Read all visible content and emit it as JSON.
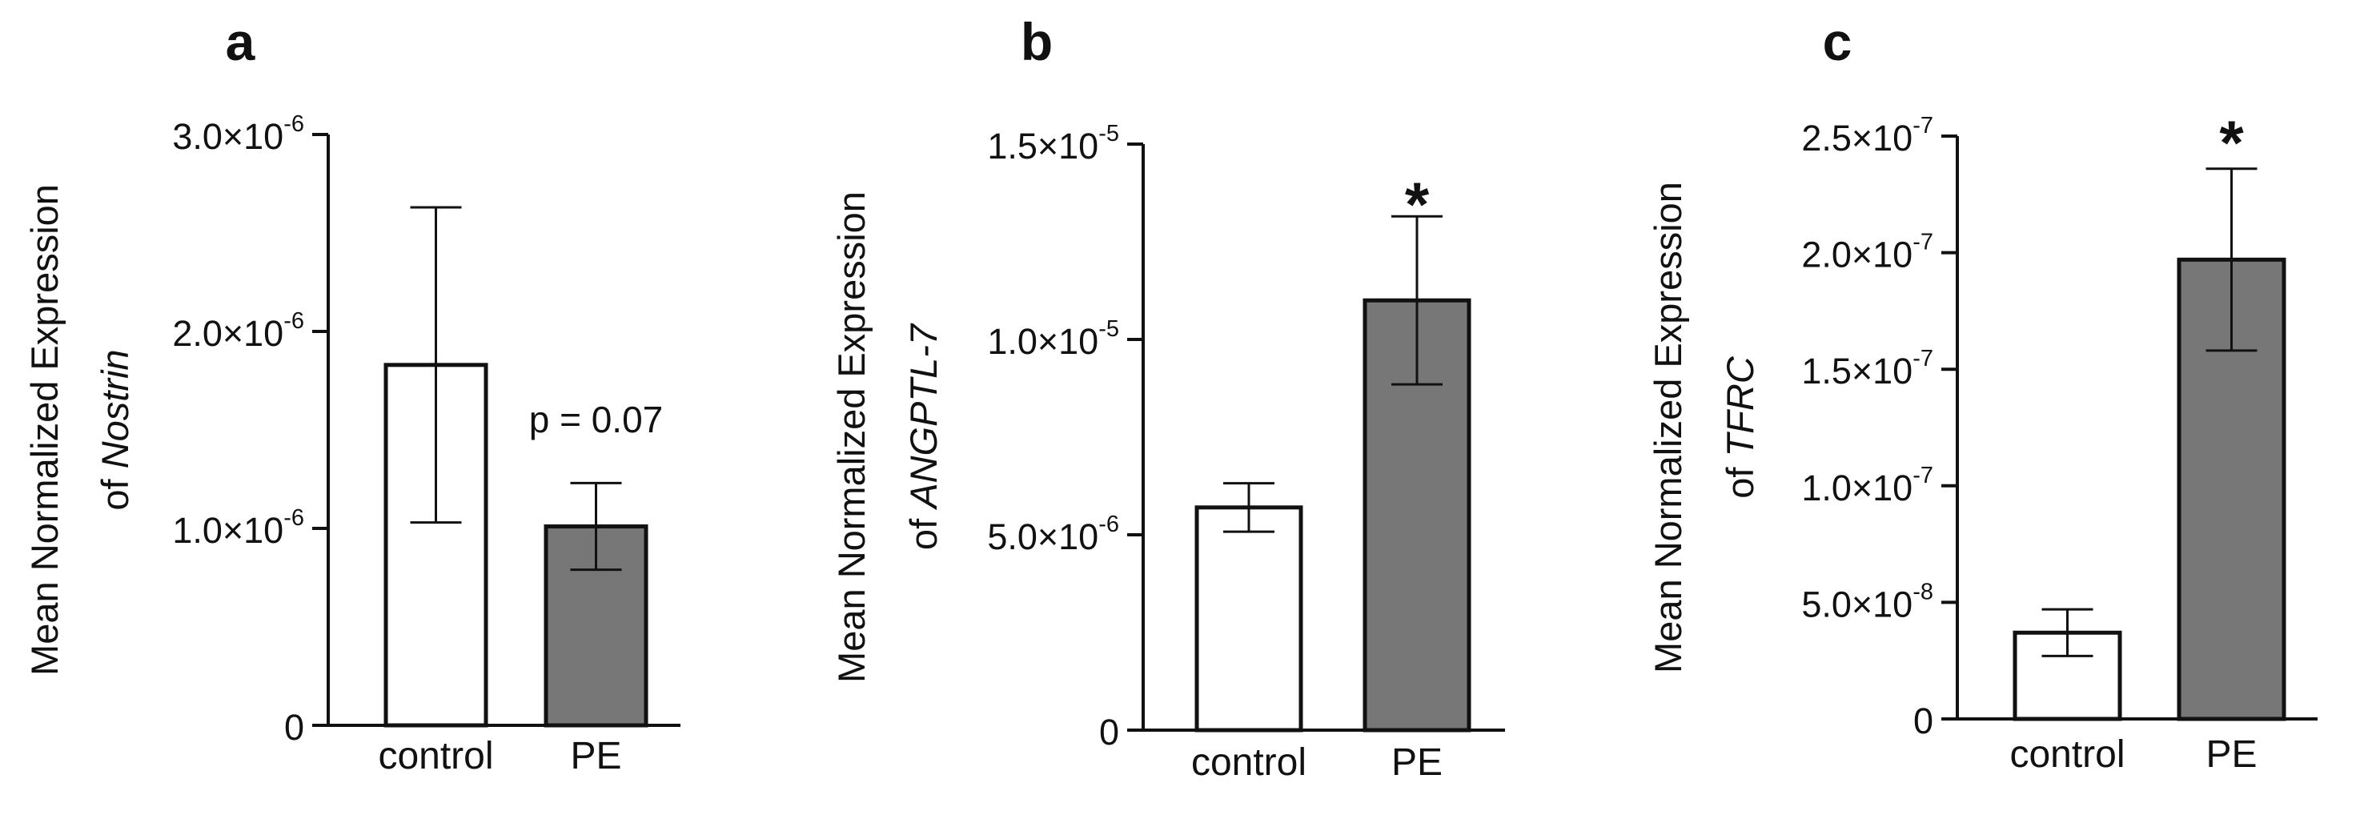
{
  "chart_data": [
    {
      "type": "bar",
      "panel": "a",
      "categories": [
        "control",
        "PE"
      ],
      "values": [
        1.83e-06,
        1.01e-06
      ],
      "error": [
        8e-07,
        2.2e-07
      ],
      "bar_colors": [
        "#ffffff",
        "#777777"
      ],
      "ylim": [
        0,
        3e-06
      ],
      "yticks": [
        {
          "value": 0,
          "label": "0",
          "exp": ""
        },
        {
          "value": 1e-06,
          "label": "1.0×10",
          "exp": "-6"
        },
        {
          "value": 2e-06,
          "label": "2.0×10",
          "exp": "-6"
        },
        {
          "value": 3e-06,
          "label": "3.0×10",
          "exp": "-6"
        }
      ],
      "ylabel_line1": "Mean Normalized Expression",
      "ylabel_line2_prefix": "of ",
      "ylabel_line2_gene": "Nostrin",
      "annotation": "p = 0.07",
      "significance": ""
    },
    {
      "type": "bar",
      "panel": "b",
      "categories": [
        "control",
        "PE"
      ],
      "values": [
        5.7e-06,
        1.1e-05
      ],
      "error": [
        6.2e-07,
        2.15e-06
      ],
      "bar_colors": [
        "#ffffff",
        "#777777"
      ],
      "ylim": [
        0,
        1.5e-05
      ],
      "yticks": [
        {
          "value": 0,
          "label": "0",
          "exp": ""
        },
        {
          "value": 5e-06,
          "label": "5.0×10",
          "exp": "-6"
        },
        {
          "value": 1e-05,
          "label": "1.0×10",
          "exp": "-5"
        },
        {
          "value": 1.5e-05,
          "label": "1.5×10",
          "exp": "-5"
        }
      ],
      "ylabel_line1": "Mean Normalized Expression",
      "ylabel_line2_prefix": "of ",
      "ylabel_line2_gene": "ANGPTL-7",
      "annotation": "",
      "significance": "*"
    },
    {
      "type": "bar",
      "panel": "c",
      "categories": [
        "control",
        "PE"
      ],
      "values": [
        3.7e-08,
        1.97e-07
      ],
      "error": [
        1e-08,
        3.9e-08
      ],
      "bar_colors": [
        "#ffffff",
        "#777777"
      ],
      "ylim": [
        0,
        2.5e-07
      ],
      "yticks": [
        {
          "value": 0,
          "label": "0",
          "exp": ""
        },
        {
          "value": 5e-08,
          "label": "5.0×10",
          "exp": "-8"
        },
        {
          "value": 1e-07,
          "label": "1.0×10",
          "exp": "-7"
        },
        {
          "value": 1.5e-07,
          "label": "1.5×10",
          "exp": "-7"
        },
        {
          "value": 2e-07,
          "label": "2.0×10",
          "exp": "-7"
        },
        {
          "value": 2.5e-07,
          "label": "2.5×10",
          "exp": "-7"
        }
      ],
      "ylabel_line1": "Mean Normalized Expression",
      "ylabel_line2_prefix": "of ",
      "ylabel_line2_gene": "TFRC",
      "annotation": "",
      "significance": "*"
    }
  ]
}
